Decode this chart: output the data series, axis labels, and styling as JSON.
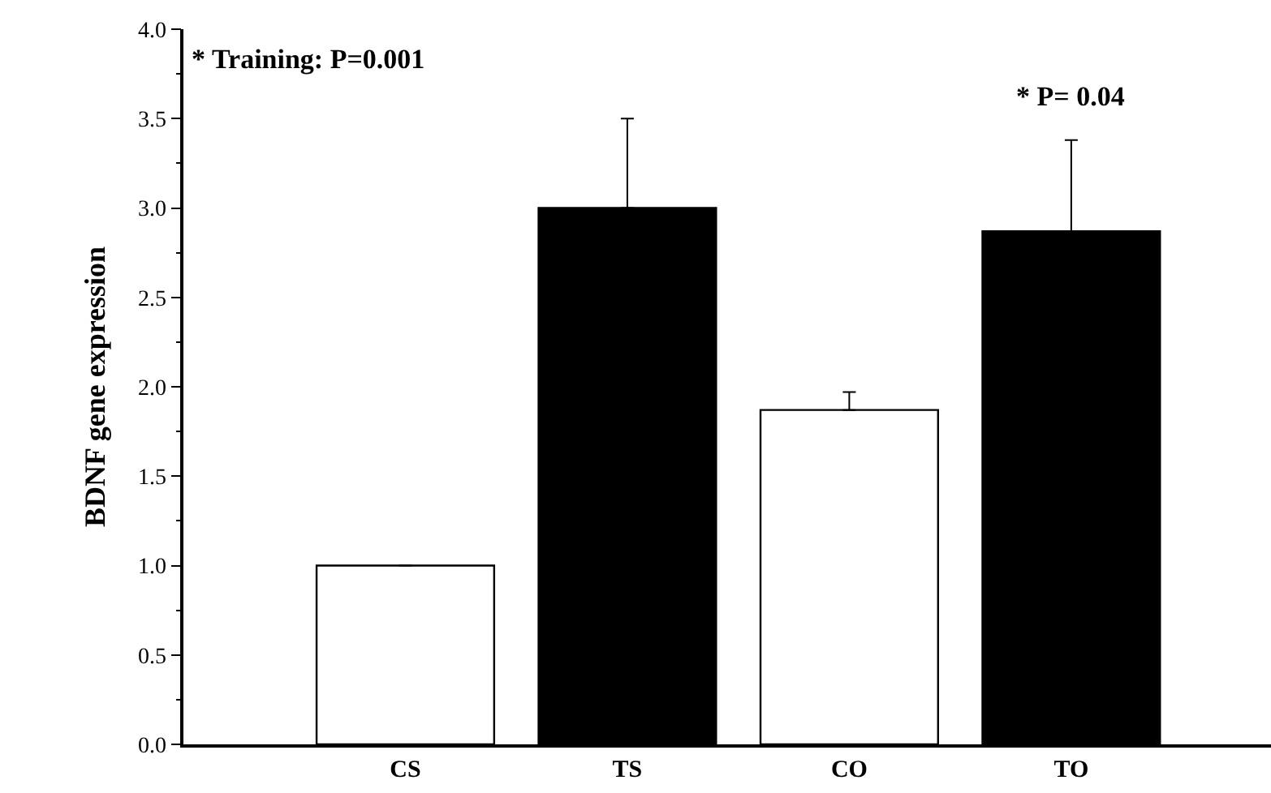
{
  "chart_data": {
    "type": "bar",
    "ylabel": "BDNF gene expression",
    "categories": [
      "CS",
      "TS",
      "CO",
      "TO"
    ],
    "values": [
      1.0,
      3.0,
      1.87,
      2.87
    ],
    "errors": [
      null,
      0.5,
      0.1,
      0.51
    ],
    "colors": [
      "#ffffff",
      "#000000",
      "#ffffff",
      "#000000"
    ],
    "ylim": [
      0,
      4.0
    ],
    "yticks": [
      {
        "value": 0,
        "label": "0.0"
      },
      0.5,
      {
        "value": 1,
        "label": "1.0"
      },
      1.5,
      {
        "value": 2,
        "label": "2.0"
      },
      2.5,
      {
        "value": 3,
        "label": "3.0"
      },
      3.5,
      {
        "value": 4,
        "label": "4.0"
      }
    ],
    "annotations": [
      "* Training: P=0.001",
      "* P= 0.04"
    ],
    "legend": false
  }
}
